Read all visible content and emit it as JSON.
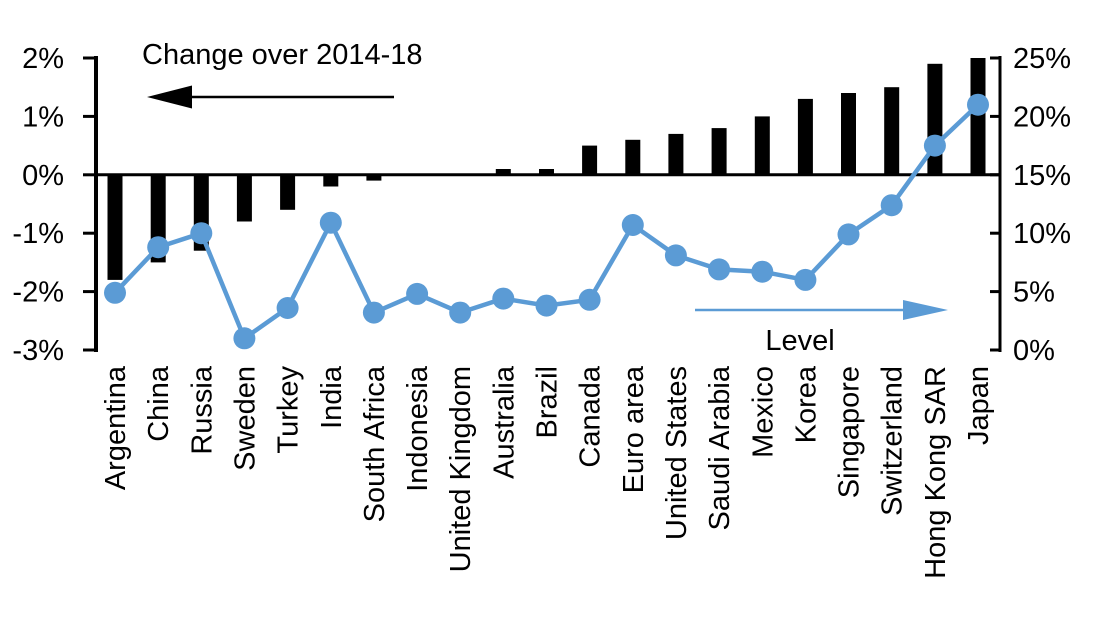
{
  "chart_data": {
    "type": "bar+line",
    "categories": [
      "Argentina",
      "China",
      "Russia",
      "Sweden",
      "Turkey",
      "India",
      "South Africa",
      "Indonesia",
      "United Kingdom",
      "Australia",
      "Brazil",
      "Canada",
      "Euro area",
      "United States",
      "Saudi Arabia",
      "Mexico",
      "Korea",
      "Singapore",
      "Switzerland",
      "Hong Kong SAR",
      "Japan"
    ],
    "series": [
      {
        "name": "Change over 2014-18",
        "type": "bar",
        "axis": "left",
        "color": "#000000",
        "unit": "percentage points",
        "values": [
          -1.8,
          -1.5,
          -1.3,
          -0.8,
          -0.6,
          -0.2,
          -0.1,
          0.0,
          0.0,
          0.1,
          0.1,
          0.5,
          0.6,
          0.7,
          0.8,
          1.0,
          1.3,
          1.4,
          1.5,
          1.9,
          2.0
        ]
      },
      {
        "name": "Level",
        "type": "line",
        "axis": "right",
        "color": "#5B9BD5",
        "unit": "%",
        "values": [
          4.9,
          8.8,
          10.0,
          1.0,
          3.6,
          10.9,
          3.2,
          4.8,
          3.2,
          4.4,
          3.8,
          4.3,
          10.7,
          8.1,
          6.9,
          6.7,
          6.0,
          9.9,
          12.4,
          17.5,
          21.0
        ]
      }
    ],
    "left_axis": {
      "min": -3,
      "max": 2,
      "tick_values": [
        2,
        1,
        0,
        -1,
        -2,
        -3
      ],
      "tick_labels": [
        "2%",
        "1%",
        "0%",
        "-1%",
        "-2%",
        "-3%"
      ]
    },
    "right_axis": {
      "min": 0,
      "max": 25,
      "tick_values": [
        25,
        20,
        15,
        10,
        5,
        0
      ],
      "tick_labels": [
        "25%",
        "20%",
        "15%",
        "10%",
        "5%",
        "0%"
      ]
    },
    "annotations": {
      "bars_label": "Change over 2014-18",
      "line_label": "Level"
    },
    "grid": false,
    "legend_position": "in-plot text annotations with directional arrows"
  },
  "colors": {
    "background": "#FFFFFF",
    "bar": "#000000",
    "line": "#5B9BD5",
    "axis": "#000000",
    "text": "#000000"
  }
}
